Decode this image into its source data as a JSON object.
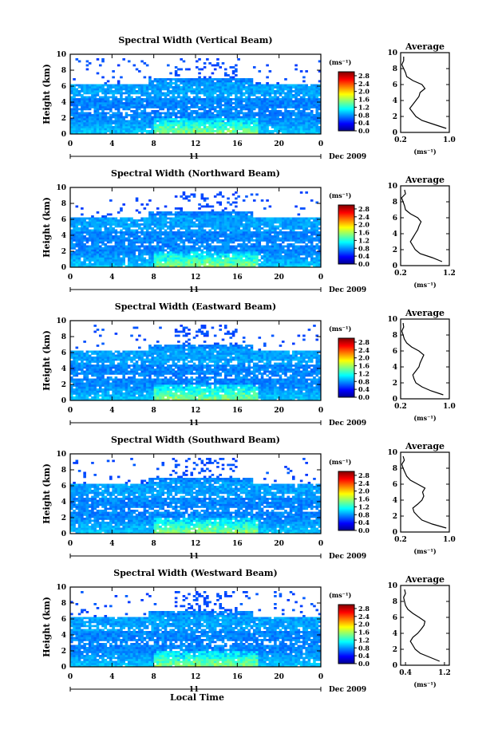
{
  "chart_data": [
    {
      "type": "heatmap",
      "title": "Spectral Width (Vertical Beam)",
      "ylabel": "Height (km)",
      "x_ticks": [
        "0",
        "4",
        "8",
        "12",
        "16",
        "20",
        "0"
      ],
      "y_ticks": [
        "0",
        "2",
        "4",
        "6",
        "8",
        "10"
      ],
      "xlim": [
        0,
        24
      ],
      "ylim": [
        0,
        10
      ],
      "day_label": "11",
      "date_label": "Dec 2009",
      "colorbar": {
        "unit": "(ms⁻¹)",
        "ticks": [
          "0.0",
          "0.4",
          "0.8",
          "1.2",
          "1.6",
          "2.0",
          "2.4",
          "2.8"
        ],
        "range": [
          0,
          3.0
        ]
      },
      "average": {
        "title": "Average",
        "xlabel": "(ms⁻¹)",
        "x_ticks": [
          "0.2",
          "1.0"
        ],
        "xlim": [
          0.2,
          1.0
        ],
        "y_ticks": [
          "0",
          "2",
          "4",
          "6",
          "8",
          "10"
        ],
        "height": [
          0.5,
          1.0,
          1.5,
          2.0,
          2.5,
          3.0,
          3.5,
          4.0,
          4.5,
          5.0,
          5.5,
          6.0,
          6.5,
          7.0,
          7.5,
          8.0,
          8.5,
          9.0,
          9.5
        ],
        "value": [
          0.95,
          0.75,
          0.55,
          0.45,
          0.4,
          0.35,
          0.4,
          0.45,
          0.5,
          0.52,
          0.6,
          0.55,
          0.4,
          0.3,
          0.28,
          0.25,
          0.22,
          0.25,
          0.25
        ]
      }
    },
    {
      "type": "heatmap",
      "title": "Spectral Width (Northward Beam)",
      "ylabel": "Height (km)",
      "x_ticks": [
        "0",
        "4",
        "8",
        "12",
        "16",
        "20",
        "0"
      ],
      "y_ticks": [
        "0",
        "2",
        "4",
        "6",
        "8",
        "10"
      ],
      "xlim": [
        0,
        24
      ],
      "ylim": [
        0,
        10
      ],
      "day_label": "11",
      "date_label": "Dec 2009",
      "colorbar": {
        "unit": "(ms⁻¹)",
        "ticks": [
          "0.0",
          "0.4",
          "0.8",
          "1.2",
          "1.6",
          "2.0",
          "2.4",
          "2.8"
        ],
        "range": [
          0,
          3.0
        ]
      },
      "average": {
        "title": "Average",
        "xlabel": "(ms⁻¹)",
        "x_ticks": [
          "0.2",
          "1.2"
        ],
        "xlim": [
          0.2,
          1.2
        ],
        "y_ticks": [
          "0",
          "2",
          "4",
          "6",
          "8",
          "10"
        ],
        "height": [
          0.5,
          1.0,
          1.5,
          2.0,
          2.5,
          3.0,
          3.5,
          4.0,
          4.5,
          5.0,
          5.5,
          6.0,
          6.5,
          7.0,
          7.5,
          8.0,
          8.5,
          9.0,
          9.5
        ],
        "value": [
          1.05,
          0.85,
          0.6,
          0.5,
          0.45,
          0.4,
          0.45,
          0.5,
          0.55,
          0.58,
          0.62,
          0.55,
          0.4,
          0.3,
          0.28,
          0.25,
          0.22,
          0.3,
          0.28
        ]
      }
    },
    {
      "type": "heatmap",
      "title": "Spectral Width (Eastward Beam)",
      "ylabel": "Height (km)",
      "x_ticks": [
        "0",
        "4",
        "8",
        "12",
        "16",
        "20",
        "0"
      ],
      "y_ticks": [
        "0",
        "2",
        "4",
        "6",
        "8",
        "10"
      ],
      "xlim": [
        0,
        24
      ],
      "ylim": [
        0,
        10
      ],
      "day_label": "11",
      "date_label": "Dec 2009",
      "colorbar": {
        "unit": "(ms⁻¹)",
        "ticks": [
          "0.0",
          "0.4",
          "0.8",
          "1.2",
          "1.6",
          "2.0",
          "2.4",
          "2.8"
        ],
        "range": [
          0,
          3.0
        ]
      },
      "average": {
        "title": "Average",
        "xlabel": "(ms⁻¹)",
        "x_ticks": [
          "0.2",
          "1.0"
        ],
        "xlim": [
          0.2,
          1.0
        ],
        "y_ticks": [
          "0",
          "2",
          "4",
          "6",
          "8",
          "10"
        ],
        "height": [
          0.5,
          1.0,
          1.5,
          2.0,
          2.5,
          3.0,
          3.5,
          4.0,
          4.5,
          5.0,
          5.5,
          6.0,
          6.5,
          7.0,
          7.5,
          8.0,
          8.5,
          9.0,
          9.5
        ],
        "value": [
          0.9,
          0.7,
          0.55,
          0.45,
          0.42,
          0.4,
          0.45,
          0.5,
          0.52,
          0.55,
          0.58,
          0.5,
          0.38,
          0.3,
          0.26,
          0.24,
          0.22,
          0.25,
          0.24
        ]
      }
    },
    {
      "type": "heatmap",
      "title": "Spectral Width (Southward Beam)",
      "ylabel": "Height (km)",
      "x_ticks": [
        "0",
        "4",
        "8",
        "12",
        "16",
        "20",
        "0"
      ],
      "y_ticks": [
        "0",
        "2",
        "4",
        "6",
        "8",
        "10"
      ],
      "xlim": [
        0,
        24
      ],
      "ylim": [
        0,
        10
      ],
      "day_label": "11",
      "date_label": "Dec 2009",
      "colorbar": {
        "unit": "(ms⁻¹)",
        "ticks": [
          "0.0",
          "0.4",
          "0.8",
          "1.2",
          "1.6",
          "2.0",
          "2.4",
          "2.8"
        ],
        "range": [
          0,
          3.0
        ]
      },
      "average": {
        "title": "Average",
        "xlabel": "(ms⁻¹)",
        "x_ticks": [
          "0.2",
          "1.0"
        ],
        "xlim": [
          0.2,
          1.0
        ],
        "y_ticks": [
          "0",
          "2",
          "4",
          "6",
          "8",
          "10"
        ],
        "height": [
          0.5,
          1.0,
          1.5,
          2.0,
          2.5,
          3.0,
          3.5,
          4.0,
          4.5,
          5.0,
          5.5,
          6.0,
          6.5,
          7.0,
          7.5,
          8.0,
          8.5,
          9.0,
          9.5
        ],
        "value": [
          0.95,
          0.72,
          0.55,
          0.48,
          0.42,
          0.4,
          0.48,
          0.55,
          0.58,
          0.56,
          0.6,
          0.48,
          0.36,
          0.3,
          0.27,
          0.24,
          0.22,
          0.26,
          0.24
        ]
      }
    },
    {
      "type": "heatmap",
      "title": "Spectral Width (Westward Beam)",
      "ylabel": "Height (km)",
      "xlabel": "Local Time",
      "x_ticks": [
        "0",
        "4",
        "8",
        "12",
        "16",
        "20",
        "0"
      ],
      "y_ticks": [
        "0",
        "2",
        "4",
        "6",
        "8",
        "10"
      ],
      "xlim": [
        0,
        24
      ],
      "ylim": [
        0,
        10
      ],
      "day_label": "11",
      "date_label": "Dec 2009",
      "colorbar": {
        "unit": "(ms⁻¹)",
        "ticks": [
          "0.0",
          "0.4",
          "0.8",
          "1.2",
          "1.6",
          "2.0",
          "2.4",
          "2.8"
        ],
        "range": [
          0,
          3.0
        ]
      },
      "average": {
        "title": "Average",
        "xlabel": "(ms⁻¹)",
        "x_ticks": [
          "0.4",
          "1.2"
        ],
        "xlim": [
          0.3,
          1.3
        ],
        "y_ticks": [
          "0",
          "2",
          "4",
          "6",
          "8",
          "10"
        ],
        "height": [
          0.5,
          1.0,
          1.5,
          2.0,
          2.5,
          3.0,
          3.5,
          4.0,
          4.5,
          5.0,
          5.5,
          6.0,
          6.5,
          7.0,
          7.5,
          8.0,
          8.5,
          9.0,
          9.5
        ],
        "value": [
          1.1,
          0.9,
          0.7,
          0.6,
          0.55,
          0.5,
          0.55,
          0.65,
          0.72,
          0.78,
          0.8,
          0.68,
          0.55,
          0.45,
          0.4,
          0.38,
          0.36,
          0.4,
          0.38
        ]
      }
    }
  ]
}
